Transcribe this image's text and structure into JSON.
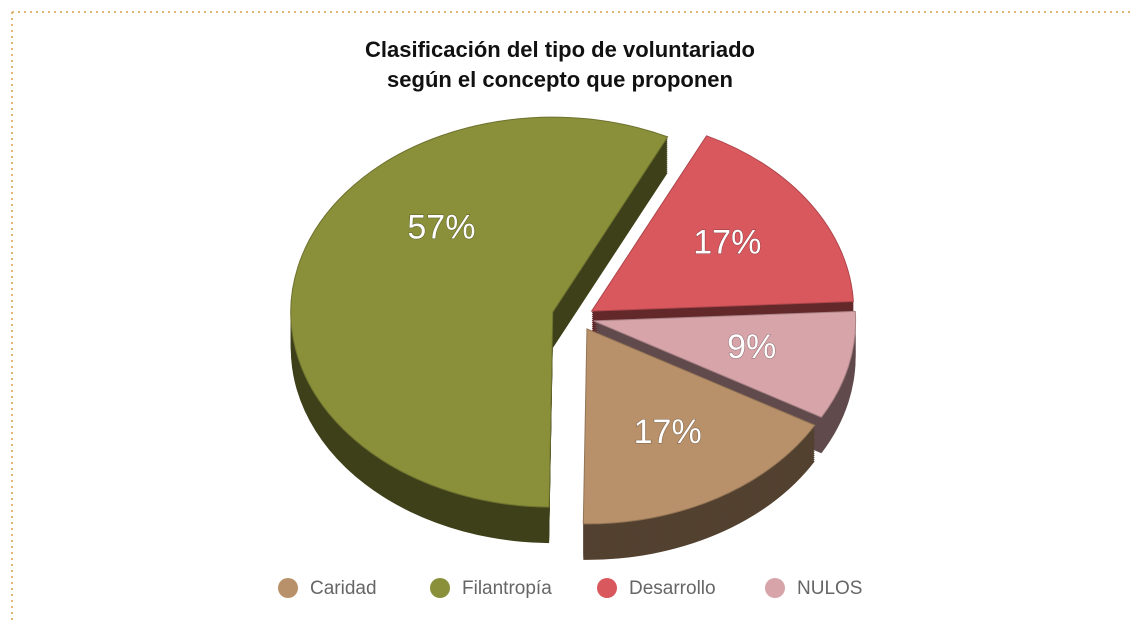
{
  "chart_data": {
    "type": "pie",
    "title": [
      "Clasificación del tipo de voluntariado",
      "según el concepto que proponen"
    ],
    "categories": [
      "Caridad",
      "Filantropía",
      "Desarrollo",
      "NULOS"
    ],
    "values": [
      17,
      57,
      17,
      9
    ],
    "value_labels": [
      "17%",
      "57%",
      "17%",
      "9%"
    ],
    "colors": [
      "#b8916a",
      "#8a8f3a",
      "#d9585e",
      "#d6a4a9"
    ],
    "legend": "bottom"
  }
}
